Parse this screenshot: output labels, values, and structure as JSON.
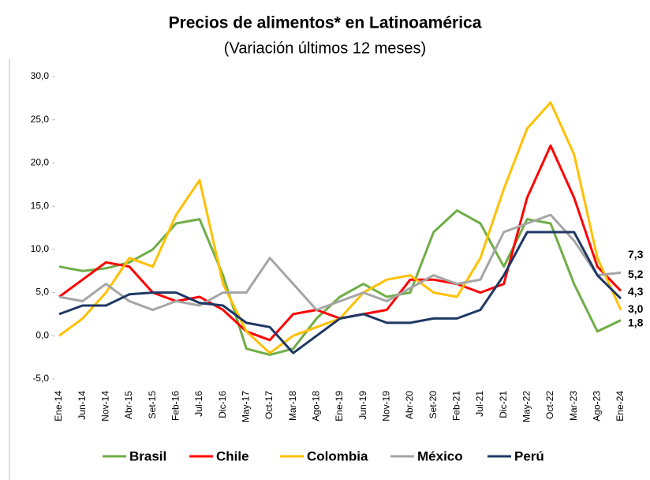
{
  "chart_data": {
    "type": "line",
    "title": "Precios de alimentos* en Latinoamérica",
    "subtitle": "(Variación últimos 12 meses)",
    "categories": [
      "Ene-14",
      "Jun-14",
      "Nov-14",
      "Abr-15",
      "Set-15",
      "Feb-16",
      "Jul-16",
      "Dic-16",
      "May-17",
      "Oct-17",
      "Mar-18",
      "Ago-18",
      "Ene-19",
      "Jun-19",
      "Nov-19",
      "Abr-20",
      "Set-20",
      "Feb-21",
      "Jul-21",
      "Dic-21",
      "May-22",
      "Oct-22",
      "Mar-23",
      "Ago-23",
      "Ene-24"
    ],
    "ylim": [
      -5,
      30
    ],
    "yticks": [
      {
        "value": -5,
        "label": "-5,0"
      },
      {
        "value": 0,
        "label": "0,0"
      },
      {
        "value": 5,
        "label": "5,0"
      },
      {
        "value": 10,
        "label": "10,0"
      },
      {
        "value": 15,
        "label": "15,0"
      },
      {
        "value": 20,
        "label": "20,0"
      },
      {
        "value": 25,
        "label": "25,0"
      },
      {
        "value": 30,
        "label": "30,0"
      }
    ],
    "series": [
      {
        "name": "Brasil",
        "color": "#70ad47",
        "values": [
          8,
          7.5,
          7.8,
          8.5,
          10,
          13,
          13.5,
          7,
          -1.5,
          -2.2,
          -1.5,
          2,
          4.5,
          6,
          4.5,
          5,
          12,
          14.5,
          13,
          8,
          13.5,
          13,
          6,
          0.5,
          1.8
        ],
        "value_labels": [
          null,
          null,
          null,
          null,
          null,
          null,
          null,
          null,
          null,
          null,
          null,
          null,
          null,
          null,
          null,
          null,
          null,
          null,
          null,
          null,
          null,
          null,
          null,
          null,
          "1,8"
        ]
      },
      {
        "name": "Chile",
        "color": "#ff0000",
        "values": [
          4.5,
          6.5,
          8.5,
          8,
          5,
          4,
          4.5,
          3,
          0.5,
          -0.5,
          2.5,
          3,
          2,
          2.5,
          3,
          6.5,
          6.5,
          6,
          5,
          6,
          16,
          22,
          16,
          8,
          5.2
        ],
        "value_labels": [
          null,
          null,
          null,
          null,
          null,
          null,
          null,
          null,
          null,
          null,
          null,
          null,
          null,
          null,
          null,
          null,
          null,
          null,
          null,
          null,
          null,
          null,
          null,
          null,
          "5,2"
        ]
      },
      {
        "name": "Colombia",
        "color": "#ffc000",
        "values": [
          0,
          2,
          5,
          9,
          8,
          14,
          18,
          6,
          0.5,
          -2,
          0,
          1,
          2,
          5,
          6.5,
          7,
          5,
          4.5,
          9,
          17,
          24,
          27,
          21,
          9,
          3.0
        ],
        "value_labels": [
          null,
          null,
          null,
          null,
          null,
          null,
          null,
          null,
          null,
          null,
          null,
          null,
          null,
          null,
          null,
          null,
          null,
          null,
          null,
          null,
          null,
          null,
          null,
          null,
          "3,0"
        ]
      },
      {
        "name": "México",
        "color": "#a5a5a5",
        "values": [
          4.5,
          4,
          6,
          4,
          3,
          4,
          3.5,
          5,
          5,
          9,
          6,
          3,
          4,
          5,
          4,
          5.5,
          7,
          6,
          6.5,
          12,
          13,
          14,
          11,
          7,
          7.3
        ],
        "value_labels": [
          null,
          null,
          null,
          null,
          null,
          null,
          null,
          null,
          null,
          null,
          null,
          null,
          null,
          null,
          null,
          null,
          null,
          null,
          null,
          null,
          null,
          null,
          null,
          null,
          "7,3"
        ]
      },
      {
        "name": "Perú",
        "color": "#1f3864",
        "values": [
          2.5,
          3.5,
          3.5,
          4.8,
          5,
          5,
          3.8,
          3.5,
          1.5,
          1,
          -2,
          0,
          2,
          2.5,
          1.5,
          1.5,
          2,
          2,
          3,
          7,
          12,
          12,
          12,
          7,
          4.3
        ],
        "value_labels": [
          null,
          null,
          null,
          null,
          null,
          null,
          null,
          null,
          null,
          null,
          null,
          null,
          null,
          null,
          null,
          null,
          null,
          null,
          null,
          null,
          null,
          null,
          null,
          null,
          "4,3"
        ]
      }
    ]
  }
}
